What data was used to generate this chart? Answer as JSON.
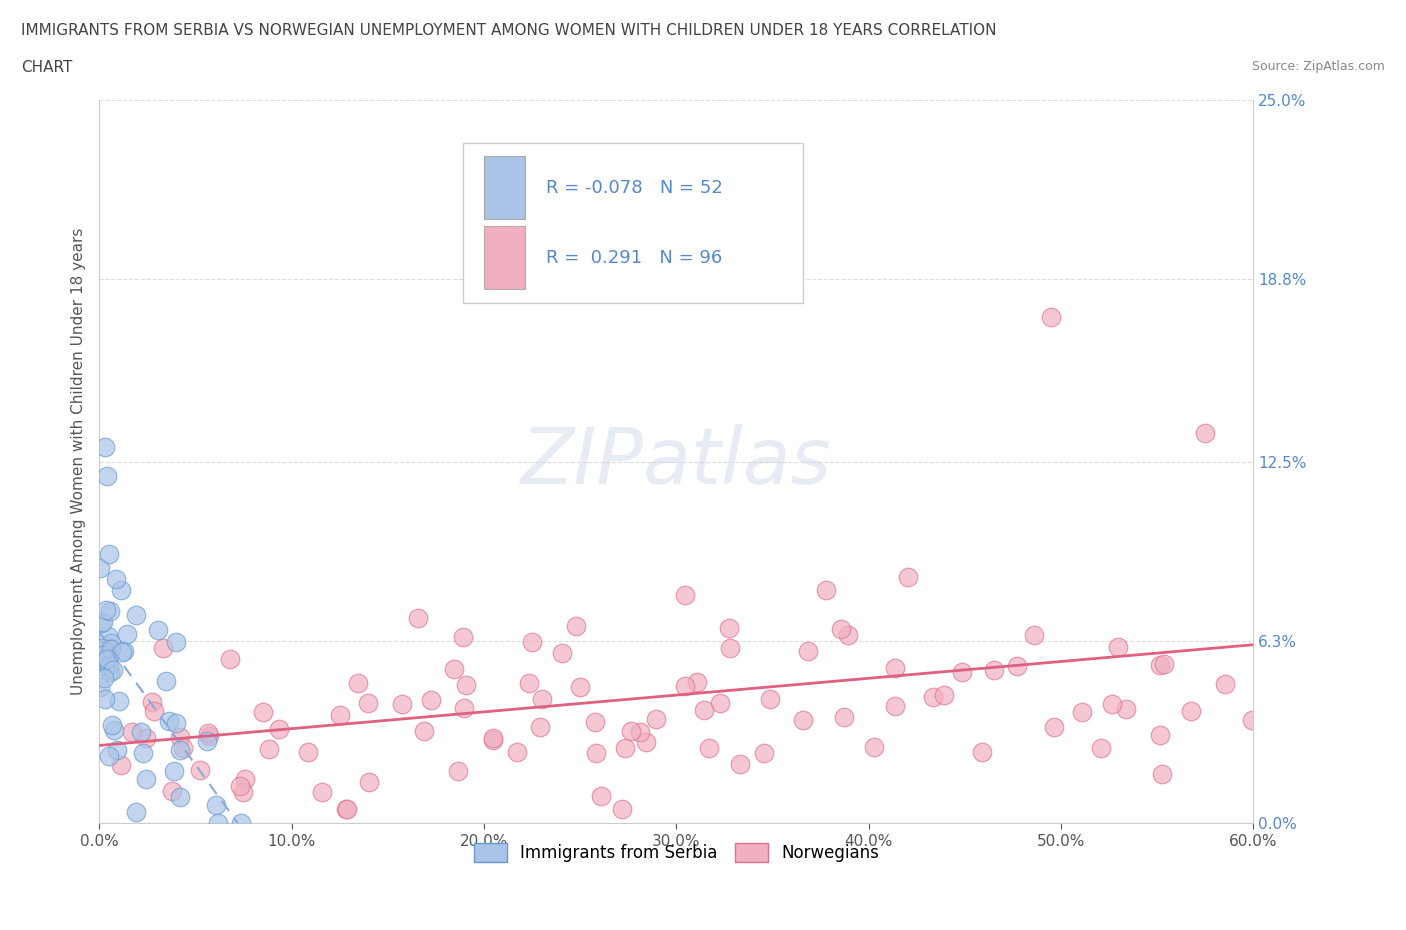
{
  "title_line1": "IMMIGRANTS FROM SERBIA VS NORWEGIAN UNEMPLOYMENT AMONG WOMEN WITH CHILDREN UNDER 18 YEARS CORRELATION",
  "title_line2": "CHART",
  "source": "Source: ZipAtlas.com",
  "ylabel": "Unemployment Among Women with Children Under 18 years",
  "serbia_color": "#aac4e8",
  "norway_color": "#f0b0c0",
  "serbia_edge": "#6699cc",
  "norway_edge": "#e07090",
  "serbia_R": -0.078,
  "serbia_N": 52,
  "norway_R": 0.291,
  "norway_N": 96,
  "legend_label_serbia": "Immigrants from Serbia",
  "legend_label_norway": "Norwegians",
  "background_color": "#ffffff",
  "grid_color": "#dddddd",
  "title_color": "#444444",
  "right_tick_color": "#5588cc",
  "watermark": "ZIPatlas",
  "serbia_trend_color": "#88aadd",
  "norway_trend_color": "#e06080"
}
